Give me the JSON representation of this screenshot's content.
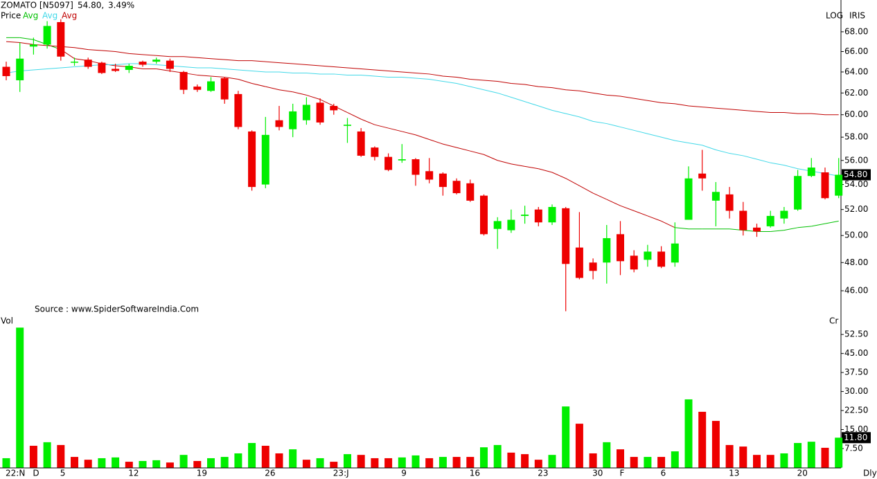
{
  "chart_data": [
    {
      "type": "candlestick",
      "title": "ZOMATO [N5097]",
      "last": "54.80,",
      "change": "3.49%",
      "change_color": "#00a000",
      "price_label": "Price",
      "price_label_color": "#00c000",
      "log": true,
      "log_label": "LOG",
      "theme_label": "IRIS",
      "source": "Source : www.SpiderSoftwareIndia.Com",
      "up_color": "#00ee00",
      "down_color": "#ee0000",
      "ylim": [
        44.35,
        70.6
      ],
      "yticks": [
        {
          "value": 46,
          "label": "46.00"
        },
        {
          "value": 48,
          "label": "48.00"
        },
        {
          "value": 50,
          "label": "50.00"
        },
        {
          "value": 52,
          "label": "52.00"
        },
        {
          "value": 54,
          "label": "54.00"
        },
        {
          "value": 56,
          "label": "56.00"
        },
        {
          "value": 58,
          "label": "58.00"
        },
        {
          "value": 60,
          "label": "60.00"
        },
        {
          "value": 62,
          "label": "62.00"
        },
        {
          "value": 64,
          "label": "64.00"
        },
        {
          "value": 66,
          "label": "66.00"
        },
        {
          "value": 68,
          "label": "68.00"
        }
      ],
      "current_tick": {
        "value": 54.8,
        "label": "54.80"
      },
      "open": [
        64.5,
        63.2,
        66.5,
        66.7,
        69,
        64.9,
        65.2,
        64.9,
        64.3,
        64.2,
        65.0,
        65.0,
        65.1,
        64.0,
        62.6,
        62.2,
        63.4,
        61.9,
        58.5,
        54.0,
        59.5,
        58.7,
        59.5,
        61.1,
        60.8,
        59.0,
        58.5,
        57.1,
        56.3,
        56.0,
        56.1,
        55.1,
        54.9,
        54.3,
        54.1,
        53.1,
        50.5,
        50.4,
        51.5,
        52.0,
        51.0,
        52.1,
        49.1,
        48.0,
        48.0,
        50.1,
        48.5,
        48.2,
        48.8,
        48.0,
        51.2,
        54.9,
        52.7,
        53.2,
        51.9,
        50.6,
        50.7,
        51.3,
        52.0,
        54.7,
        55.0,
        53.1
      ],
      "high": [
        65,
        66.9,
        67.4,
        69.1,
        69.3,
        65.4,
        65.4,
        65.0,
        64.8,
        64.8,
        65.1,
        65.4,
        65.3,
        64.1,
        62.8,
        63.5,
        63.5,
        62.2,
        58.6,
        59.8,
        60.8,
        61.0,
        61.6,
        61.5,
        61.0,
        59.7,
        58.8,
        57.2,
        56.6,
        57.4,
        56.2,
        56.2,
        55.0,
        54.5,
        54.4,
        53.2,
        51.4,
        52.0,
        52.3,
        52.2,
        52.4,
        52.2,
        51.8,
        48.3,
        50.8,
        51.1,
        48.9,
        49.3,
        49.2,
        51.0,
        55.5,
        56.9,
        54.2,
        53.8,
        52.6,
        50.9,
        51.9,
        52.2,
        55.2,
        56.2,
        55.4,
        56.2
      ],
      "low": [
        63.2,
        62.1,
        65.7,
        66.3,
        65.1,
        64.6,
        64.3,
        63.8,
        64.0,
        63.9,
        64.5,
        64.8,
        64.0,
        61.9,
        62.1,
        62.1,
        61.0,
        58.7,
        53.5,
        53.7,
        58.6,
        58.0,
        59.1,
        59.1,
        60.0,
        57.5,
        56.3,
        56.0,
        55.1,
        55.8,
        53.9,
        54.1,
        53.1,
        53.2,
        52.6,
        50.0,
        49.0,
        50.2,
        50.9,
        50.7,
        50.8,
        44.6,
        46.8,
        46.8,
        46.5,
        47.1,
        47.3,
        47.7,
        47.6,
        47.7,
        51.2,
        53.5,
        50.7,
        51.3,
        50.0,
        49.9,
        50.6,
        50.9,
        51.9,
        54.6,
        52.8,
        52.9
      ],
      "close": [
        63.6,
        65.3,
        66.7,
        68.6,
        65.5,
        65.0,
        64.5,
        63.9,
        64.1,
        64.6,
        64.7,
        65.2,
        64.3,
        62.3,
        62.3,
        63.1,
        61.4,
        58.9,
        53.8,
        58.2,
        58.9,
        60.3,
        60.9,
        59.3,
        60.4,
        59.1,
        56.4,
        56.3,
        55.2,
        56.1,
        54.8,
        54.4,
        53.8,
        53.3,
        52.7,
        50.1,
        51.1,
        51.2,
        51.6,
        51.0,
        52.2,
        47.9,
        46.9,
        47.4,
        49.8,
        48.1,
        47.5,
        48.8,
        47.7,
        49.4,
        54.5,
        54.5,
        53.4,
        51.9,
        50.4,
        50.3,
        51.5,
        51.9,
        54.7,
        55.4,
        52.9,
        54.8
      ],
      "series": [
        {
          "name": "Avg",
          "color": "#00c000",
          "values": [
            67.4,
            67.4,
            67.2,
            66.7,
            66.2,
            65.3,
            65.1,
            64.8,
            64.6,
            64.5,
            64.3,
            64.3,
            64.1,
            63.9,
            63.7,
            63.6,
            63.5,
            63.3,
            62.9,
            62.6,
            62.3,
            62.1,
            61.8,
            61.4,
            60.8,
            60.2,
            59.6,
            59.1,
            58.8,
            58.5,
            58.2,
            57.8,
            57.4,
            57.1,
            56.8,
            56.5,
            56.0,
            55.7,
            55.5,
            55.3,
            55.0,
            54.5,
            53.9,
            53.3,
            52.8,
            52.3,
            51.9,
            51.5,
            51.1,
            50.6,
            50.5,
            50.5,
            50.5,
            50.5,
            50.4,
            50.3,
            50.3,
            50.4,
            50.6,
            50.7,
            50.9,
            51.1
          ],
          "colors": [
            "#00c000",
            "#00c000",
            "#00c000",
            "#00c000",
            "#c00000",
            "#c00000",
            "#c00000",
            "#c00000",
            "#c00000",
            "#c00000",
            "#c00000",
            "#c00000",
            "#c00000",
            "#c00000",
            "#c00000",
            "#c00000",
            "#c00000",
            "#c00000",
            "#c00000",
            "#c00000",
            "#c00000",
            "#c00000",
            "#c00000",
            "#c00000",
            "#c00000",
            "#c00000",
            "#c00000",
            "#c00000",
            "#c00000",
            "#c00000",
            "#c00000",
            "#c00000",
            "#c00000",
            "#c00000",
            "#c00000",
            "#c00000",
            "#c00000",
            "#c00000",
            "#c00000",
            "#c00000",
            "#c00000",
            "#c00000",
            "#c00000",
            "#c00000",
            "#c00000",
            "#c00000",
            "#c00000",
            "#c00000",
            "#c00000",
            "#00c000",
            "#00c000",
            "#00c000",
            "#00c000",
            "#00c000",
            "#00c000",
            "#00c000",
            "#00c000",
            "#00c000",
            "#00c000",
            "#00c000",
            "#00c000",
            "#00c000"
          ]
        },
        {
          "name": "Avg",
          "color": "#40d8e8",
          "values": [
            63.9,
            64.1,
            64.2,
            64.3,
            64.4,
            64.5,
            64.6,
            64.7,
            64.7,
            64.8,
            64.8,
            64.7,
            64.6,
            64.5,
            64.4,
            64.4,
            64.3,
            64.2,
            64.1,
            64.0,
            64.0,
            63.9,
            63.9,
            63.8,
            63.8,
            63.7,
            63.7,
            63.6,
            63.5,
            63.5,
            63.4,
            63.3,
            63.1,
            62.9,
            62.6,
            62.3,
            62.0,
            61.6,
            61.2,
            60.8,
            60.4,
            60.1,
            59.8,
            59.4,
            59.2,
            58.9,
            58.6,
            58.3,
            58.0,
            57.7,
            57.5,
            57.3,
            56.9,
            56.6,
            56.4,
            56.1,
            55.8,
            55.6,
            55.3,
            55.1,
            54.9,
            54.7
          ]
        },
        {
          "name": "Avg",
          "color": "#c00000",
          "values": [
            67.0,
            66.9,
            66.7,
            66.6,
            66.5,
            66.4,
            66.2,
            66.1,
            66.0,
            65.8,
            65.7,
            65.6,
            65.5,
            65.5,
            65.4,
            65.3,
            65.2,
            65.1,
            65.1,
            65.0,
            64.9,
            64.8,
            64.7,
            64.6,
            64.5,
            64.4,
            64.3,
            64.2,
            64.1,
            64.0,
            63.9,
            63.8,
            63.6,
            63.5,
            63.3,
            63.2,
            63.1,
            62.9,
            62.8,
            62.6,
            62.5,
            62.3,
            62.2,
            62.0,
            61.8,
            61.7,
            61.5,
            61.3,
            61.1,
            61.0,
            60.8,
            60.7,
            60.6,
            60.5,
            60.4,
            60.3,
            60.2,
            60.2,
            60.1,
            60.1,
            60.0,
            60.0
          ]
        }
      ]
    },
    {
      "type": "bar",
      "title": "Vol",
      "title_color": "#00c000",
      "unit_label": "Cr",
      "period_label": "Dly",
      "categories": [
        "22:N",
        null,
        "D",
        null,
        "5",
        null,
        null,
        null,
        null,
        "12",
        null,
        null,
        null,
        null,
        "19",
        null,
        null,
        null,
        null,
        "26",
        null,
        null,
        null,
        null,
        "23:J",
        null,
        null,
        null,
        null,
        "9",
        null,
        null,
        null,
        null,
        "16",
        null,
        null,
        null,
        null,
        "23",
        null,
        null,
        null,
        "30",
        null,
        "F",
        null,
        null,
        "6",
        null,
        null,
        null,
        null,
        "13",
        null,
        null,
        null,
        null,
        "20",
        null,
        null,
        null
      ],
      "ylim": [
        0,
        56.1
      ],
      "yticks": [
        {
          "value": 7.5,
          "label": "7.50"
        },
        {
          "value": 15,
          "label": "15.00"
        },
        {
          "value": 22.5,
          "label": "22.50"
        },
        {
          "value": 30,
          "label": "30.00"
        },
        {
          "value": 37.5,
          "label": "37.50"
        },
        {
          "value": 45,
          "label": "45.00"
        },
        {
          "value": 52.5,
          "label": "52.50"
        }
      ],
      "current_tick": {
        "value": 11.8,
        "label": "11.80"
      },
      "values": [
        3.7,
        55.2,
        8.6,
        10.0,
        8.9,
        4.2,
        3.1,
        3.7,
        4.0,
        2.3,
        2.6,
        2.9,
        2.0,
        5.0,
        2.6,
        3.7,
        4.2,
        5.6,
        9.7,
        8.6,
        5.6,
        7.2,
        3.1,
        3.7,
        2.3,
        5.3,
        5.0,
        3.7,
        3.7,
        4.0,
        4.8,
        3.7,
        4.2,
        4.2,
        4.2,
        8.0,
        8.9,
        5.9,
        5.3,
        3.1,
        5.0,
        24.1,
        17.3,
        5.6,
        10.0,
        7.2,
        4.2,
        4.2,
        4.2,
        6.4,
        26.9,
        22.0,
        18.4,
        8.9,
        8.3,
        5.0,
        5.0,
        5.6,
        9.7,
        10.2,
        7.8,
        11.8
      ],
      "colors": [
        "#00ee00",
        "#00ee00",
        "#ee0000",
        "#00ee00",
        "#ee0000",
        "#ee0000",
        "#ee0000",
        "#00ee00",
        "#00ee00",
        "#ee0000",
        "#00ee00",
        "#00ee00",
        "#ee0000",
        "#00ee00",
        "#ee0000",
        "#00ee00",
        "#00ee00",
        "#00ee00",
        "#00ee00",
        "#ee0000",
        "#ee0000",
        "#00ee00",
        "#ee0000",
        "#00ee00",
        "#ee0000",
        "#00ee00",
        "#ee0000",
        "#ee0000",
        "#ee0000",
        "#00ee00",
        "#00ee00",
        "#ee0000",
        "#00ee00",
        "#ee0000",
        "#ee0000",
        "#00ee00",
        "#00ee00",
        "#ee0000",
        "#ee0000",
        "#ee0000",
        "#00ee00",
        "#00ee00",
        "#ee0000",
        "#ee0000",
        "#00ee00",
        "#ee0000",
        "#ee0000",
        "#00ee00",
        "#ee0000",
        "#00ee00",
        "#00ee00",
        "#ee0000",
        "#ee0000",
        "#ee0000",
        "#ee0000",
        "#ee0000",
        "#ee0000",
        "#00ee00",
        "#00ee00",
        "#00ee00",
        "#ee0000",
        "#00ee00"
      ]
    }
  ]
}
